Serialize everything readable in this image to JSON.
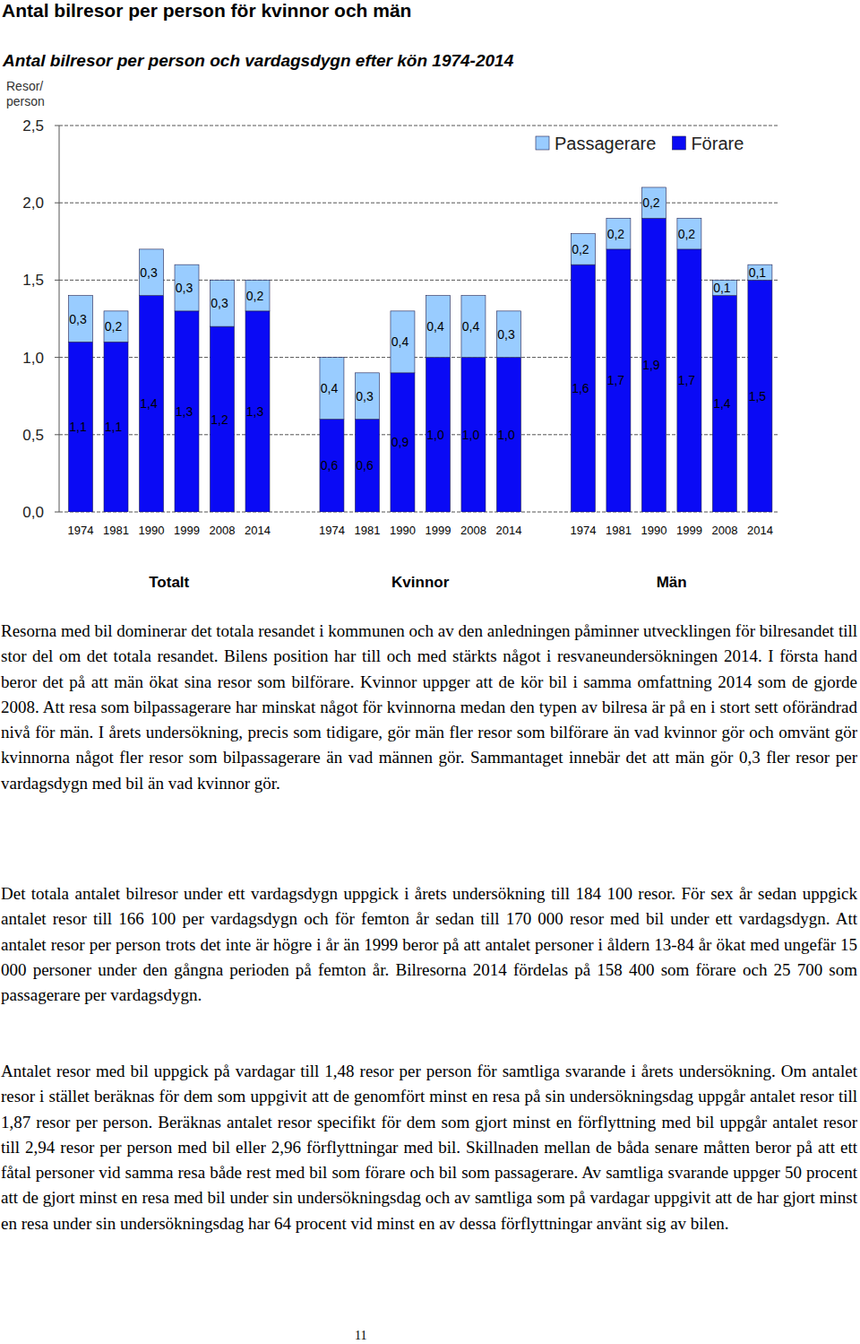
{
  "header": {
    "title": "Antal bilresor per person för kvinnor och män",
    "page_number": "11"
  },
  "chart_data": {
    "type": "bar",
    "stacked": true,
    "title": "Antal bilresor per person och vardagsdygn efter kön 1974-2014",
    "y_label": "Resor/ person",
    "categories": [
      "1974",
      "1981",
      "1990",
      "1999",
      "2008",
      "2014",
      "1974",
      "1981",
      "1990",
      "1999",
      "2008",
      "2014",
      "1974",
      "1981",
      "1990",
      "1999",
      "2008",
      "2014"
    ],
    "groups": [
      "Totalt",
      "Kvinnor",
      "Män"
    ],
    "series": [
      {
        "name": "Förare",
        "color": "#0a0af5",
        "values": [
          1.1,
          1.1,
          1.4,
          1.3,
          1.2,
          1.3,
          0.6,
          0.6,
          0.9,
          1.0,
          1.0,
          1.0,
          1.6,
          1.7,
          1.9,
          1.7,
          1.4,
          1.5
        ],
        "value_labels": [
          "1,1",
          "1,1",
          "1,4",
          "1,3",
          "1,2",
          "1,3",
          "0,6",
          "0,6",
          "0,9",
          "1,0",
          "1,0",
          "1,0",
          "1,6",
          "1,7",
          "1,9",
          "1,7",
          "1,4",
          "1,5"
        ]
      },
      {
        "name": "Passagerare",
        "color": "#99ccff",
        "values": [
          0.3,
          0.2,
          0.3,
          0.3,
          0.3,
          0.2,
          0.4,
          0.3,
          0.4,
          0.4,
          0.4,
          0.3,
          0.2,
          0.2,
          0.2,
          0.2,
          0.1,
          0.1
        ],
        "value_labels": [
          "0,3",
          "0,2",
          "0,3",
          "0,3",
          "0,3",
          "0,2",
          "0,4",
          "0,3",
          "0,4",
          "0,4",
          "0,4",
          "0,3",
          "0,2",
          "0,2",
          "0,2",
          "0,2",
          "0,1",
          "0,1"
        ]
      }
    ],
    "ylim": [
      0,
      2.5
    ],
    "yticks": [
      {
        "value": 0,
        "label": "0,0"
      },
      {
        "value": 0.5,
        "label": "0,5"
      },
      {
        "value": 1,
        "label": "1,0"
      },
      {
        "value": 1.5,
        "label": "1,5"
      },
      {
        "value": 2,
        "label": "2,0"
      },
      {
        "value": 2.5,
        "label": "2,5"
      }
    ],
    "grid": true,
    "legend": "upper right",
    "data_labels": true
  },
  "paragraphs": [
    "Resorna med bil dominerar det totala resandet i kommunen och av den anledningen påminner utvecklingen för bilresandet till stor del om det totala resandet. Bilens position har till och med stärkts något i resvaneundersökningen 2014. I första hand beror det på att män ökat sina resor som bilförare. Kvinnor uppger att de kör bil i samma omfattning 2014 som de gjorde 2008. Att resa som bilpassagerare har minskat något för kvinnorna medan den typen av bilresa är på en i stort sett oförändrad nivå för män. I årets undersökning, precis som tidigare, gör män fler resor som bilförare än vad kvinnor gör och omvänt gör kvinnorna något fler resor som bilpassagerare än vad männen gör. Sammantaget innebär det att män gör 0,3 fler resor per vardagsdygn med bil än vad kvinnor gör.",
    "Det totala antalet bilresor under ett vardagsdygn uppgick i årets undersökning till 184 100 resor. För sex år sedan uppgick antalet resor till 166 100 per vardagsdygn och för femton år sedan till 170 000 resor med bil under ett vardagsdygn. Att antalet resor per person trots det inte är högre i år än 1999 beror på att antalet personer i åldern 13-84 år ökat med ungefär 15 000 personer under den gångna perioden på femton år. Bilresorna 2014 fördelas på 158 400 som förare och 25 700 som passagerare per vardagsdygn.",
    "Antalet resor med bil uppgick på vardagar till 1,48 resor per person för samtliga svarande i årets undersökning. Om antalet resor i stället beräknas för dem som uppgivit att de genomfört minst en resa på sin undersökningsdag uppgår antalet resor till 1,87 resor per person. Beräknas antalet resor specifikt för dem som gjort minst en förflyttning med bil uppgår antalet resor till 2,94 resor per person med bil eller 2,96 förflyttningar med bil. Skillnaden mellan de båda senare måtten beror på att ett fåtal personer vid samma resa både rest med bil som förare och bil som passagerare. Av samtliga svarande uppger 50 procent att de gjort minst en resa med bil under sin undersökningsdag och av samtliga som på vardagar uppgivit att de har gjort minst en resa under sin undersökningsdag har 64 procent vid minst en av dessa förflyttningar använt sig av bilen."
  ]
}
